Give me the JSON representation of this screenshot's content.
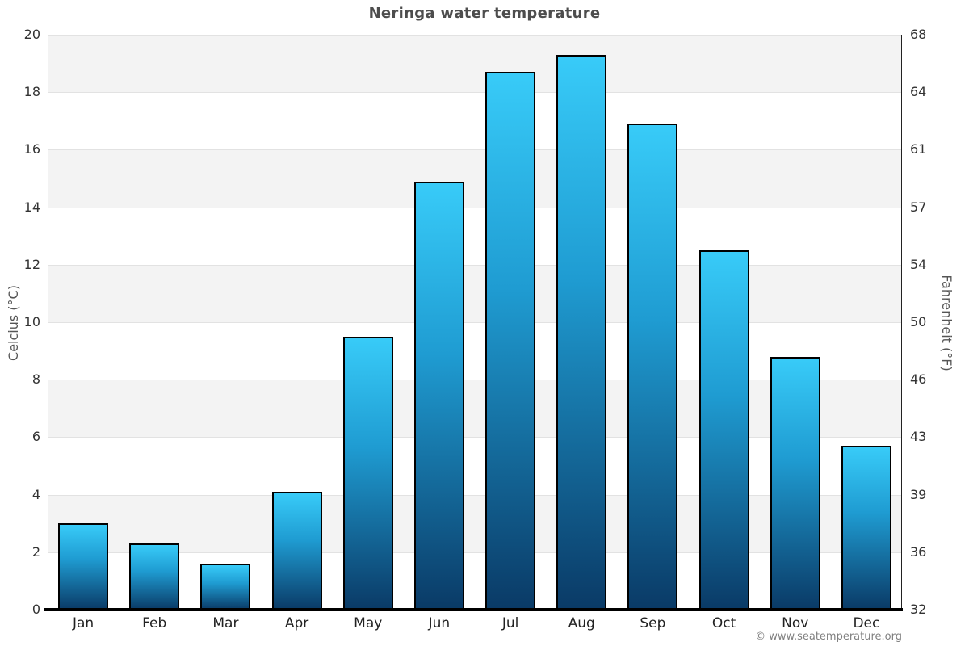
{
  "title": "Neringa water temperature",
  "axes": {
    "left_label": "Celcius (°C)",
    "right_label": "Fahrenheit (°F)"
  },
  "footer": {
    "copyright": "© www.seatemperature.org"
  },
  "colors": {
    "bar_gradient_top": "#38cbf8",
    "bar_gradient_mid": "#1f9cd2",
    "bar_gradient_bottom": "#0a3a66",
    "bar_border": "#000000",
    "band_shaded": "#f3f3f3",
    "band_plain": "#ffffff",
    "gridline": "#e2e2e2",
    "left_axis_line": "#aaaaaa",
    "right_axis_line": "#222222",
    "baseline": "#000000",
    "title_text": "#4d4d4d",
    "tick_text": "#333333",
    "month_text": "#222222",
    "axis_label_text": "#555555",
    "copyright_text": "#808080"
  },
  "chart_data": {
    "type": "bar",
    "title": "Neringa water temperature",
    "categories": [
      "Jan",
      "Feb",
      "Mar",
      "Apr",
      "May",
      "Jun",
      "Jul",
      "Aug",
      "Sep",
      "Oct",
      "Nov",
      "Dec"
    ],
    "values": [
      3.0,
      2.3,
      1.6,
      4.1,
      9.5,
      14.9,
      18.7,
      19.3,
      16.9,
      12.5,
      8.8,
      5.7
    ],
    "ylabel": "Celcius (°C)",
    "ylabel_right": "Fahrenheit (°F)",
    "ylim": [
      0,
      20
    ],
    "yticks_left": [
      20,
      18,
      16,
      14,
      12,
      10,
      8,
      6,
      4,
      2,
      0
    ],
    "yticks_right": [
      68,
      64,
      61,
      57,
      54,
      50,
      46,
      43,
      39,
      36,
      32
    ],
    "grid": "horizontal gridlines every 2°C with alternating shaded bands (18-20, 14-16, 10-12, 6-8, 2-4)",
    "legend": "none"
  }
}
